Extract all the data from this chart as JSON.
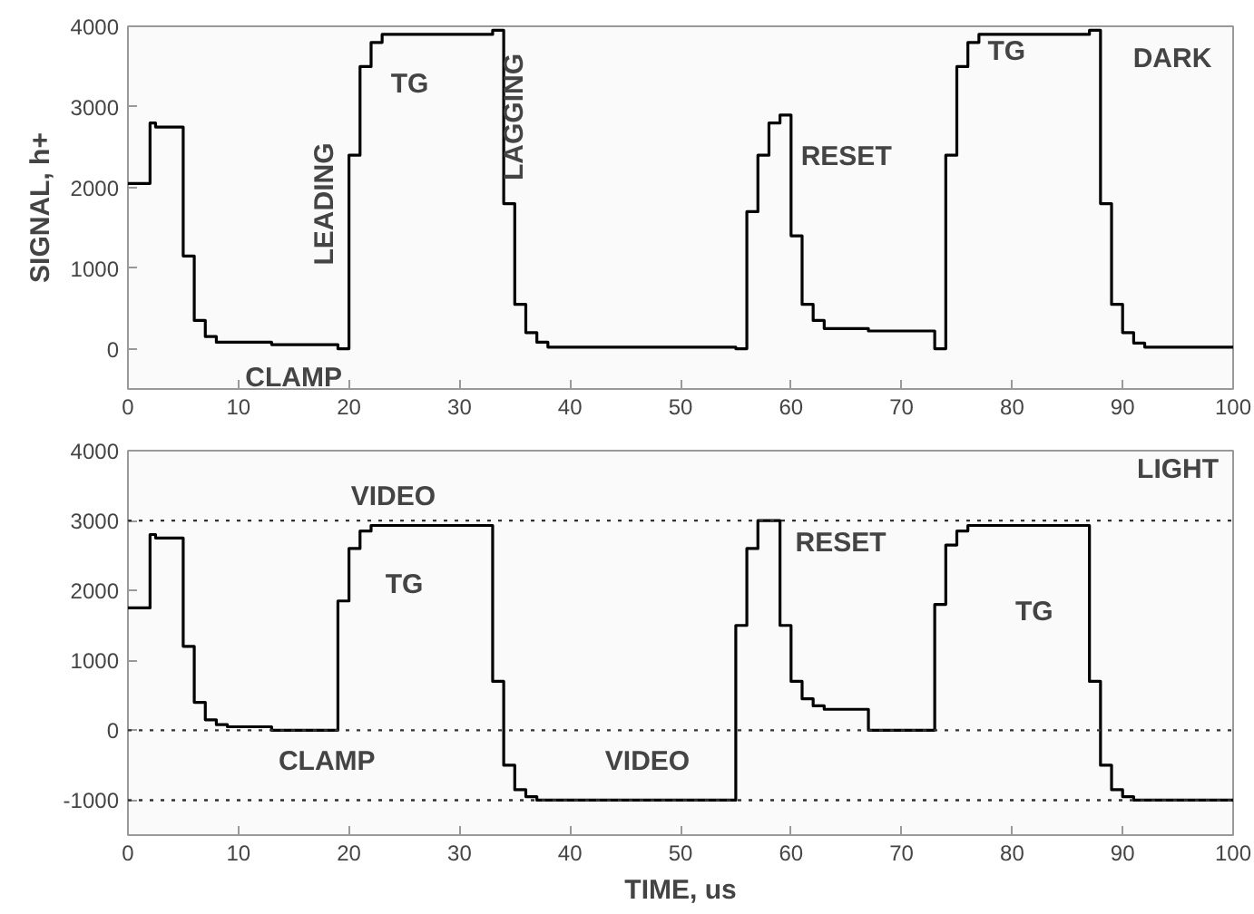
{
  "chart_data": [
    {
      "type": "step",
      "ylabel": "SIGNAL, h+",
      "xlim": [
        0,
        100
      ],
      "ylim": [
        -500,
        4000
      ],
      "xticks": [
        0,
        10,
        20,
        30,
        40,
        50,
        60,
        70,
        80,
        90,
        100
      ],
      "yticks": [
        0,
        1000,
        2000,
        3000,
        4000
      ],
      "grid": false,
      "series": [
        {
          "color": "#000000",
          "x": [
            0,
            2,
            2.5,
            5,
            6,
            7,
            8,
            13,
            19,
            20,
            21,
            22,
            23,
            33,
            34,
            35,
            36,
            37,
            38,
            55,
            56,
            57,
            58,
            59,
            60,
            61,
            62,
            63,
            67,
            73,
            74,
            75,
            76,
            77,
            87,
            88,
            89,
            90,
            91,
            92,
            100
          ],
          "values": [
            2050,
            2800,
            2750,
            1150,
            350,
            150,
            80,
            50,
            0,
            2400,
            3500,
            3800,
            3900,
            3950,
            1800,
            550,
            200,
            80,
            20,
            0,
            1700,
            2400,
            2800,
            2900,
            1400,
            550,
            350,
            250,
            220,
            0,
            2400,
            3500,
            3800,
            3900,
            3950,
            1800,
            550,
            200,
            70,
            20,
            0
          ]
        }
      ],
      "annotations": [
        "CLAMP",
        "LEADING",
        "TG",
        "LAGGING",
        "RESET",
        "TG",
        "DARK"
      ]
    },
    {
      "type": "step",
      "xlabel": "TIME, us",
      "xlim": [
        0,
        100
      ],
      "ylim": [
        -1500,
        4000
      ],
      "xticks": [
        0,
        10,
        20,
        30,
        40,
        50,
        60,
        70,
        80,
        90,
        100
      ],
      "yticks": [
        -1000,
        0,
        1000,
        2000,
        3000,
        4000
      ],
      "grid": false,
      "series": [
        {
          "color": "#000000",
          "x": [
            0,
            2,
            2.5,
            5,
            6,
            7,
            8,
            9,
            13,
            19,
            20,
            21,
            22,
            33,
            34,
            35,
            36,
            37,
            55,
            56,
            57,
            59,
            60,
            61,
            62,
            63,
            67,
            73,
            74,
            75,
            76,
            87,
            88,
            89,
            90,
            91,
            100
          ],
          "values": [
            1750,
            2800,
            2750,
            1200,
            400,
            150,
            80,
            50,
            0,
            1850,
            2600,
            2850,
            2930,
            700,
            -500,
            -850,
            -950,
            -1000,
            1500,
            2600,
            3000,
            1500,
            700,
            450,
            350,
            300,
            0,
            1800,
            2650,
            2850,
            2930,
            700,
            -500,
            -850,
            -950,
            -1000,
            -1000
          ]
        }
      ],
      "ref_lines": [
        {
          "axis": "y",
          "value": 3000,
          "line_style": "dotted"
        },
        {
          "axis": "y",
          "value": 0,
          "line_style": "dotted"
        },
        {
          "axis": "y",
          "value": -1000,
          "line_style": "dotted"
        }
      ],
      "annotations": [
        "VIDEO",
        "TG",
        "CLAMP",
        "VIDEO",
        "RESET",
        "TG",
        "LIGHT"
      ]
    }
  ]
}
